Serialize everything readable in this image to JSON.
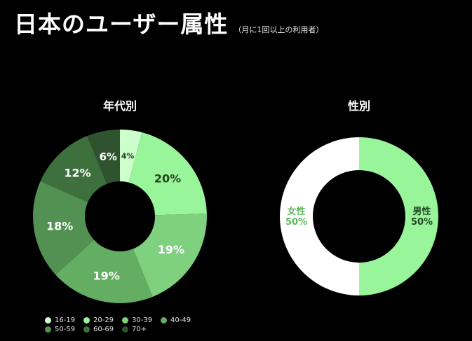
{
  "header": {
    "title": "日本のユーザー属性",
    "subtitle": "（月に1回以上の利用者）"
  },
  "chart_data": [
    {
      "type": "pie",
      "title": "年代別",
      "categories": [
        "16-19",
        "20-29",
        "30-39",
        "40-49",
        "50-59",
        "60-69",
        "70+"
      ],
      "values": [
        4,
        20,
        19,
        19,
        18,
        12,
        6
      ],
      "labels": [
        "4%",
        "20%",
        "19%",
        "19%",
        "18%",
        "12%",
        "6%"
      ],
      "colors": [
        "#ccffcc",
        "#99f599",
        "#7fd07f",
        "#64ae64",
        "#529152",
        "#3e703e",
        "#2f532f"
      ],
      "label_colors": [
        "#244524",
        "#244524",
        "#ffffff",
        "#ffffff",
        "#ffffff",
        "#ffffff",
        "#ffffff"
      ],
      "legend_position": "bottom-left"
    },
    {
      "type": "pie",
      "title": "性別",
      "categories": [
        "男性",
        "女性"
      ],
      "values": [
        50,
        50
      ],
      "labels": [
        "男性\n50%",
        "女性\n50%"
      ],
      "colors": [
        "#99f599",
        "#ffffff"
      ],
      "label_colors": [
        "#244524",
        "#5cb85c"
      ]
    }
  ]
}
